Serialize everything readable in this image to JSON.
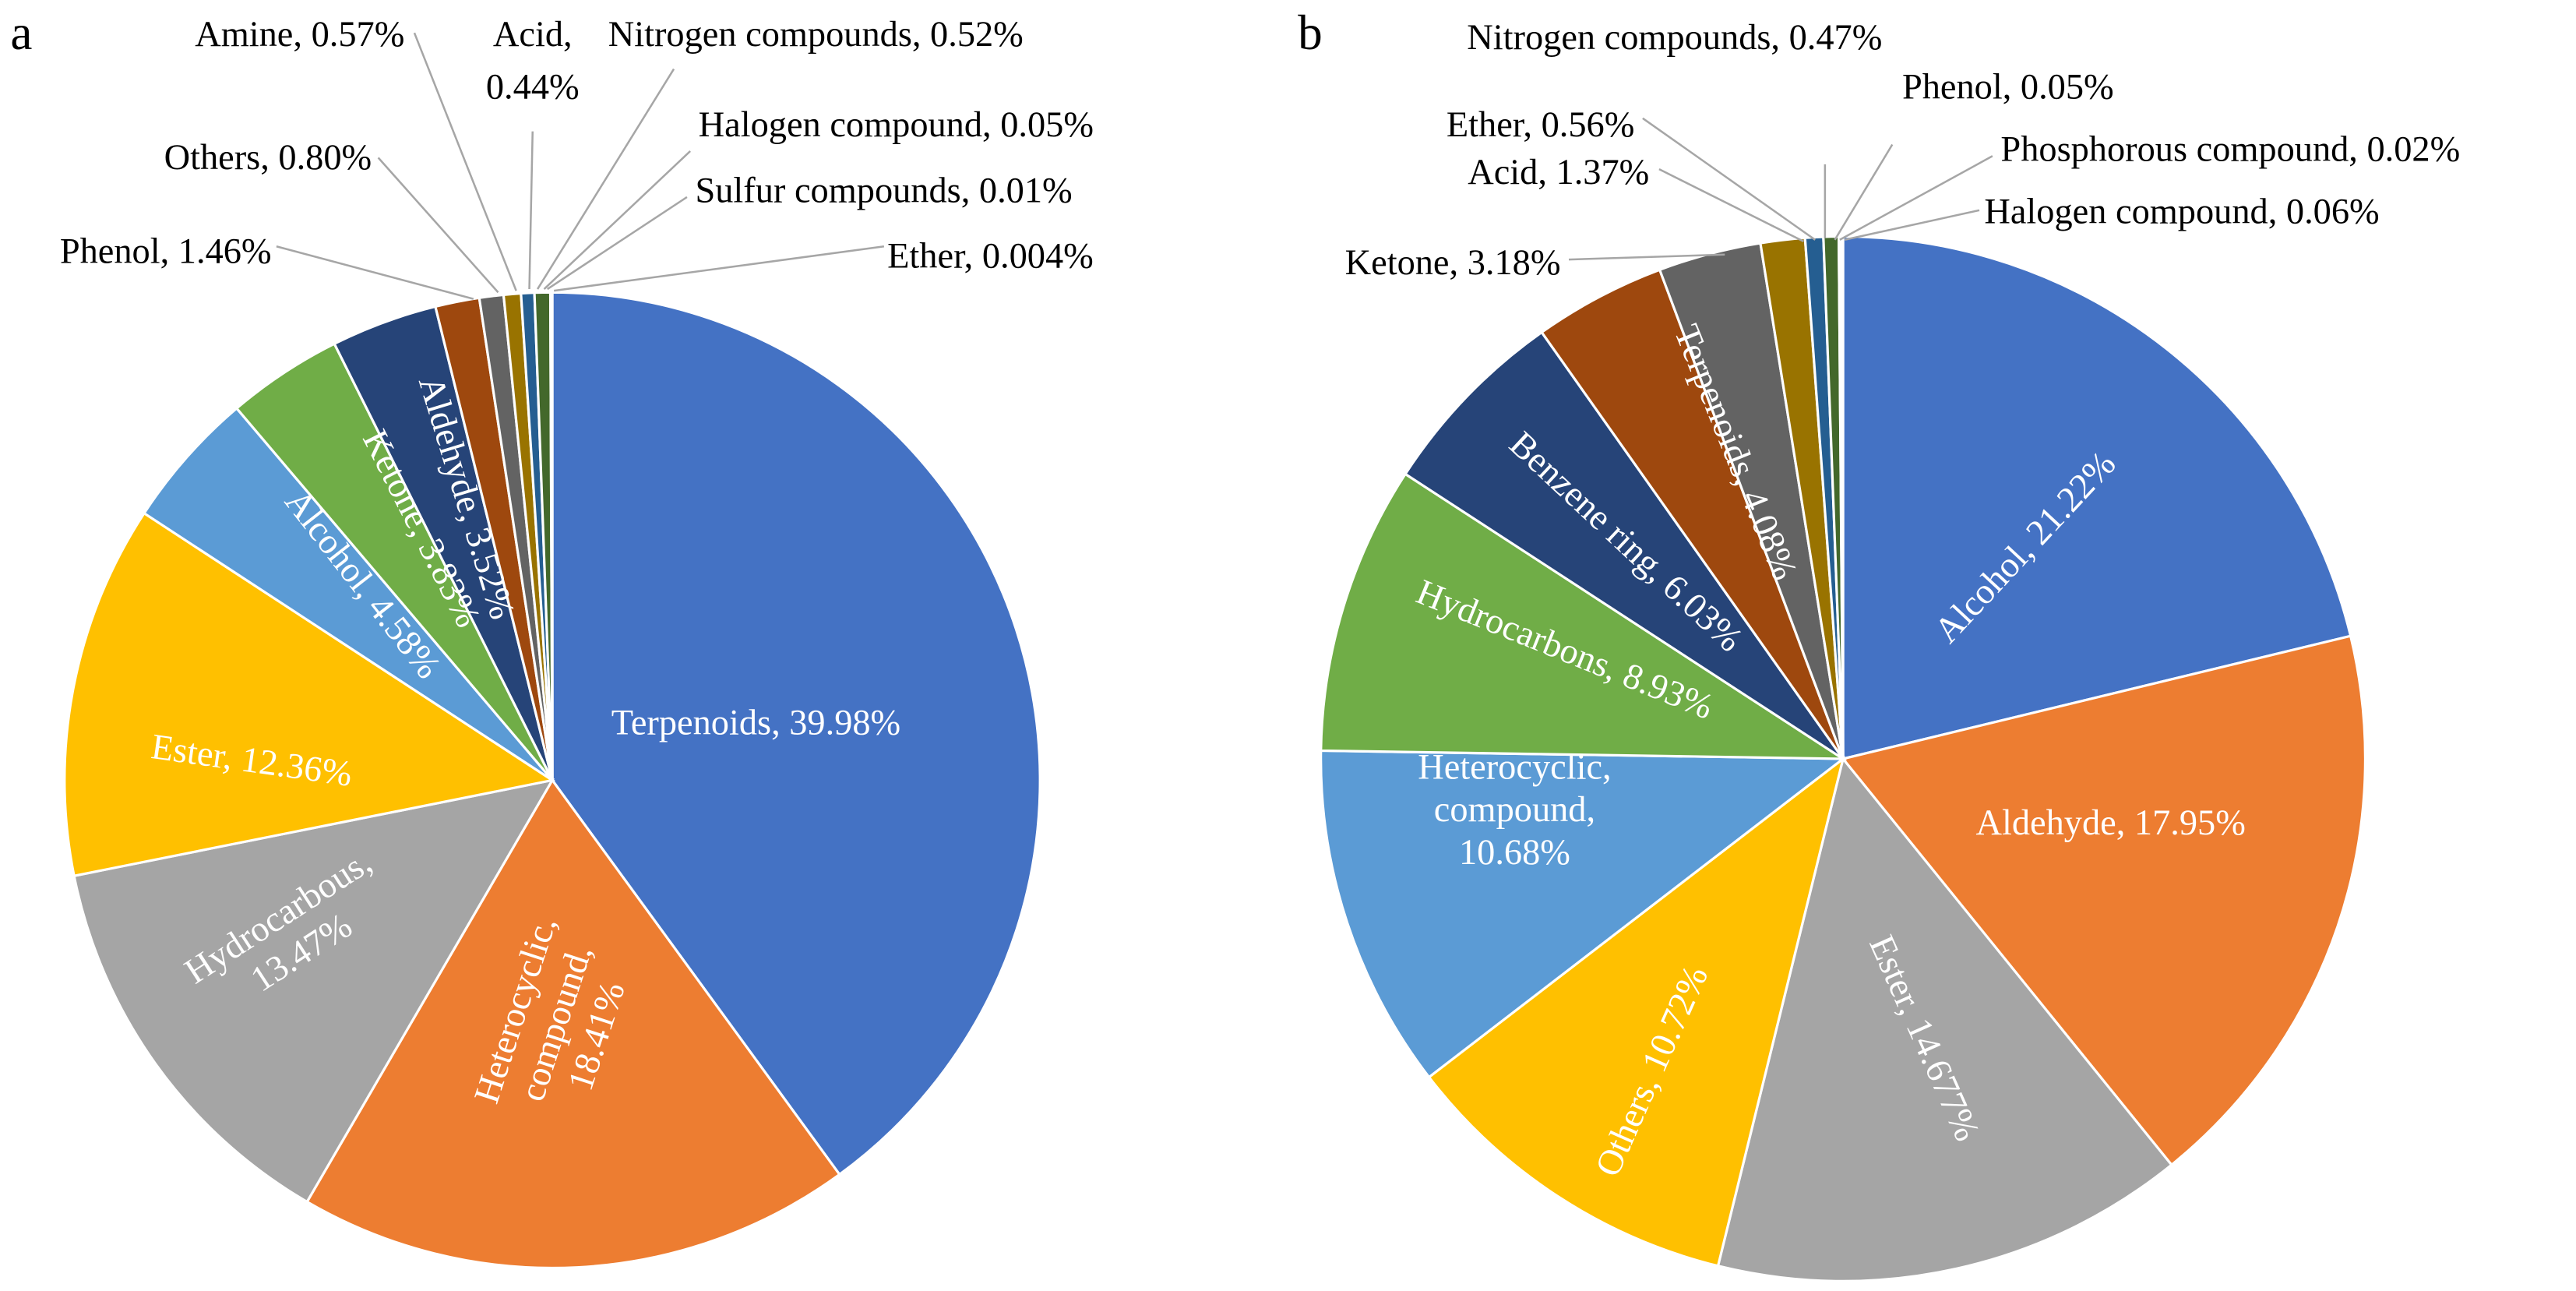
{
  "chart_data": [
    {
      "type": "pie",
      "panel_label": "a",
      "start": "top, clockwise",
      "slices": [
        {
          "name": "Terpenoids",
          "value": 39.98,
          "color": "#4472C4",
          "label_lines": [
            "Terpenoids, 39.98%"
          ],
          "label_pos": "inside"
        },
        {
          "name": "Heterocyclic compound",
          "value": 18.41,
          "color": "#ED7D31",
          "label_lines": [
            "Heterocyclic,",
            "compound,",
            "18.41%"
          ],
          "label_pos": "inside"
        },
        {
          "name": "Hydrocarbous",
          "value": 13.47,
          "color": "#A5A5A5",
          "label_lines": [
            "Hydrocarbous,",
            "13.47%"
          ],
          "label_pos": "inside"
        },
        {
          "name": "Ester",
          "value": 12.36,
          "color": "#FFC000",
          "label_lines": [
            "Ester, 12.36%"
          ],
          "label_pos": "inside"
        },
        {
          "name": "Alcohol",
          "value": 4.58,
          "color": "#5B9BD5",
          "label_lines": [
            "Alcohol, 4.58%"
          ],
          "label_pos": "inside"
        },
        {
          "name": "Ketone",
          "value": 3.83,
          "color": "#70AD47",
          "label_lines": [
            "Ketone, 3.83%"
          ],
          "label_pos": "inside"
        },
        {
          "name": "Aldehyde",
          "value": 3.52,
          "color": "#264478",
          "label_lines": [
            "Aldehyde, 3.52%"
          ],
          "label_pos": "inside"
        },
        {
          "name": "Phenol",
          "value": 1.46,
          "color": "#9E480E",
          "label_lines": [
            "Phenol, 1.46%"
          ],
          "label_pos": "outside"
        },
        {
          "name": "Others",
          "value": 0.8,
          "color": "#636363",
          "label_lines": [
            "Others, 0.80%"
          ],
          "label_pos": "outside"
        },
        {
          "name": "Amine",
          "value": 0.57,
          "color": "#997300",
          "label_lines": [
            "Amine, 0.57%"
          ],
          "label_pos": "outside"
        },
        {
          "name": "Acid",
          "value": 0.44,
          "color": "#255E91",
          "label_lines": [
            "Acid,",
            "0.44%"
          ],
          "label_pos": "outside"
        },
        {
          "name": "Nitrogen compounds",
          "value": 0.52,
          "color": "#43682B",
          "label_lines": [
            "Nitrogen compounds, 0.52%"
          ],
          "label_pos": "outside"
        },
        {
          "name": "Halogen compound",
          "value": 0.05,
          "color": "#698ED0",
          "label_lines": [
            "Halogen compound, 0.05%"
          ],
          "label_pos": "outside"
        },
        {
          "name": "Sulfur compounds",
          "value": 0.01,
          "color": "#F1975A",
          "label_lines": [
            "Sulfur compounds, 0.01%"
          ],
          "label_pos": "outside"
        },
        {
          "name": "Ether",
          "value": 0.004,
          "color": "#B7B7B7",
          "label_lines": [
            "Ether, 0.004%"
          ],
          "label_pos": "outside"
        }
      ]
    },
    {
      "type": "pie",
      "panel_label": "b",
      "start": "top, clockwise",
      "slices": [
        {
          "name": "Alcohol",
          "value": 21.22,
          "color": "#4472C4",
          "label_lines": [
            "Alcohol, 21.22%"
          ],
          "label_pos": "inside"
        },
        {
          "name": "Aldehyde",
          "value": 17.95,
          "color": "#ED7D31",
          "label_lines": [
            "Aldehyde, 17.95%"
          ],
          "label_pos": "inside"
        },
        {
          "name": "Ester",
          "value": 14.677,
          "color": "#A5A5A5",
          "label_lines": [
            "Ester, 14.677%"
          ],
          "label_pos": "inside"
        },
        {
          "name": "Others",
          "value": 10.72,
          "color": "#FFC000",
          "label_lines": [
            "Others, 10.72%"
          ],
          "label_pos": "inside"
        },
        {
          "name": "Heterocyclic compound",
          "value": 10.68,
          "color": "#5B9BD5",
          "label_lines": [
            "Heterocyclic,",
            "compound,",
            "10.68%"
          ],
          "label_pos": "inside"
        },
        {
          "name": "Hydrocarbons",
          "value": 8.93,
          "color": "#70AD47",
          "label_lines": [
            "Hydrocarbons, 8.93%"
          ],
          "label_pos": "inside"
        },
        {
          "name": "Benzene ring",
          "value": 6.03,
          "color": "#264478",
          "label_lines": [
            "Benzene ring, 6.03%"
          ],
          "label_pos": "inside"
        },
        {
          "name": "Terpenoids",
          "value": 4.08,
          "color": "#9E480E",
          "label_lines": [
            "Terpenoids, 4.08%"
          ],
          "label_pos": "inside"
        },
        {
          "name": "Ketone",
          "value": 3.18,
          "color": "#636363",
          "label_lines": [
            "Ketone, 3.18%"
          ],
          "label_pos": "outside"
        },
        {
          "name": "Acid",
          "value": 1.37,
          "color": "#997300",
          "label_lines": [
            "Acid, 1.37%"
          ],
          "label_pos": "outside"
        },
        {
          "name": "Ether",
          "value": 0.56,
          "color": "#255E91",
          "label_lines": [
            "Ether, 0.56%"
          ],
          "label_pos": "outside"
        },
        {
          "name": "Nitrogen compounds",
          "value": 0.47,
          "color": "#43682B",
          "label_lines": [
            "Nitrogen compounds, 0.47%"
          ],
          "label_pos": "outside"
        },
        {
          "name": "Phenol",
          "value": 0.05,
          "color": "#698ED0",
          "label_lines": [
            "Phenol, 0.05%"
          ],
          "label_pos": "outside"
        },
        {
          "name": "Phosphorous compound",
          "value": 0.02,
          "color": "#F1975A",
          "label_lines": [
            "Phosphorous compound, 0.02%"
          ],
          "label_pos": "outside"
        },
        {
          "name": "Halogen compound",
          "value": 0.06,
          "color": "#B7B7B7",
          "label_lines": [
            "Halogen compound, 0.06%"
          ],
          "label_pos": "outside"
        }
      ]
    }
  ]
}
